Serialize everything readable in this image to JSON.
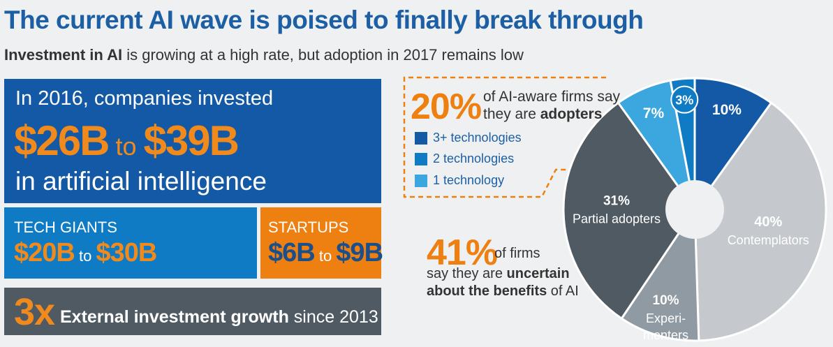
{
  "title": "The current AI wave is poised to finally break through",
  "subtitle": {
    "bold": "Investment in AI",
    "rest": " is growing at a high rate, but adoption in 2017 remains low"
  },
  "investment": {
    "line1": "In 2016, companies invested",
    "low": "$26B",
    "to": " to ",
    "high": "$39B",
    "line3": "in artificial intelligence"
  },
  "tech_giants": {
    "label": "TECH GIANTS",
    "low": "$20B",
    "to": " to ",
    "high": "$30B"
  },
  "startups": {
    "label": "STARTUPS",
    "low": "$6B",
    "to": " to ",
    "high": "$9B"
  },
  "growth": {
    "value": "3x",
    "bold": "External investment growth",
    "rest": " since 2013"
  },
  "adopters_callout": {
    "pct": "20%",
    "line1": "of AI-aware firms say",
    "line2_pre": "they are ",
    "line2_bold": "adopters"
  },
  "legend": [
    {
      "label": "3+ technologies",
      "color": "#1459a6"
    },
    {
      "label": "2 technologies",
      "color": "#0e7bc4"
    },
    {
      "label": "1 technology",
      "color": "#3ba7de"
    }
  ],
  "uncertain_callout": {
    "pct": "41%",
    "line1": "of firms",
    "line2_pre": "say they are ",
    "line2_bold": "uncertain",
    "line3_bold": "about the benefits",
    "line3_post": " of AI"
  },
  "colors": {
    "callout_border": "#ee7f11",
    "donut_hole": "#eff0f1",
    "slice_separator": "#ffffff"
  },
  "chart_data": {
    "type": "pie",
    "title": "",
    "slices": [
      {
        "name": "",
        "value": 10,
        "label": "10%",
        "color": "#1459a6",
        "text_color": "#ffffff"
      },
      {
        "name": "Contemplators",
        "value": 40,
        "label": "40%",
        "color": "#c5c9cd",
        "text_color": "#ffffff"
      },
      {
        "name": "Experi- menters",
        "value": 10,
        "label": "10%",
        "color": "#8f9aa3",
        "text_color": "#ffffff"
      },
      {
        "name": "Partial adopters",
        "value": 31,
        "label": "31%",
        "color": "#4f5a63",
        "text_color": "#ffffff"
      },
      {
        "name": "",
        "value": 7,
        "label": "7%",
        "color": "#3ba7de",
        "text_color": "#ffffff"
      },
      {
        "name": "",
        "value": 3,
        "label": "3%",
        "color": "#0e7bc4",
        "text_color": "#ffffff"
      }
    ]
  }
}
